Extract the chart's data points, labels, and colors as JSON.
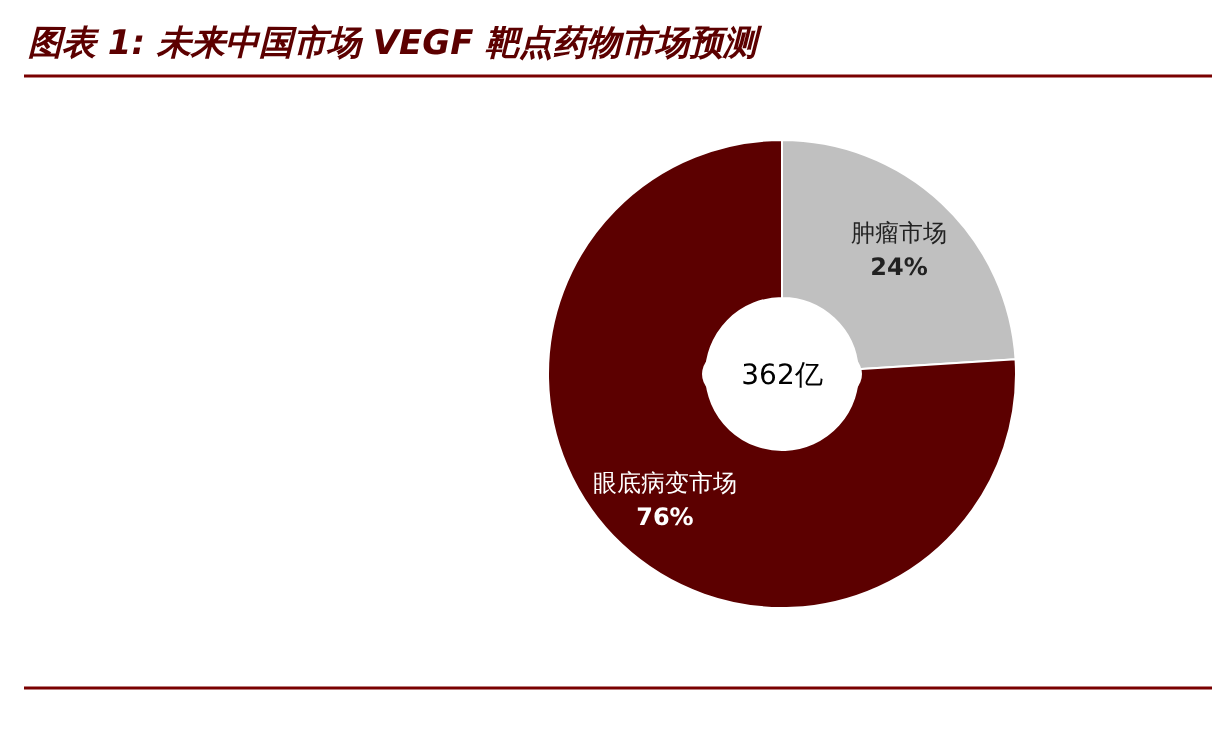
{
  "chart_data": {
    "type": "donut",
    "title": "图表 1: 未来中国市场 VEGF 靶点药物市场预测",
    "categories": [
      "肿瘤市场",
      "眼底病变市场"
    ],
    "values": [
      24,
      76
    ],
    "colors": [
      "#c0c0c0",
      "#5c0000"
    ],
    "value_labels": [
      "24%",
      "76%"
    ],
    "annotations": [
      "362亿"
    ]
  }
}
